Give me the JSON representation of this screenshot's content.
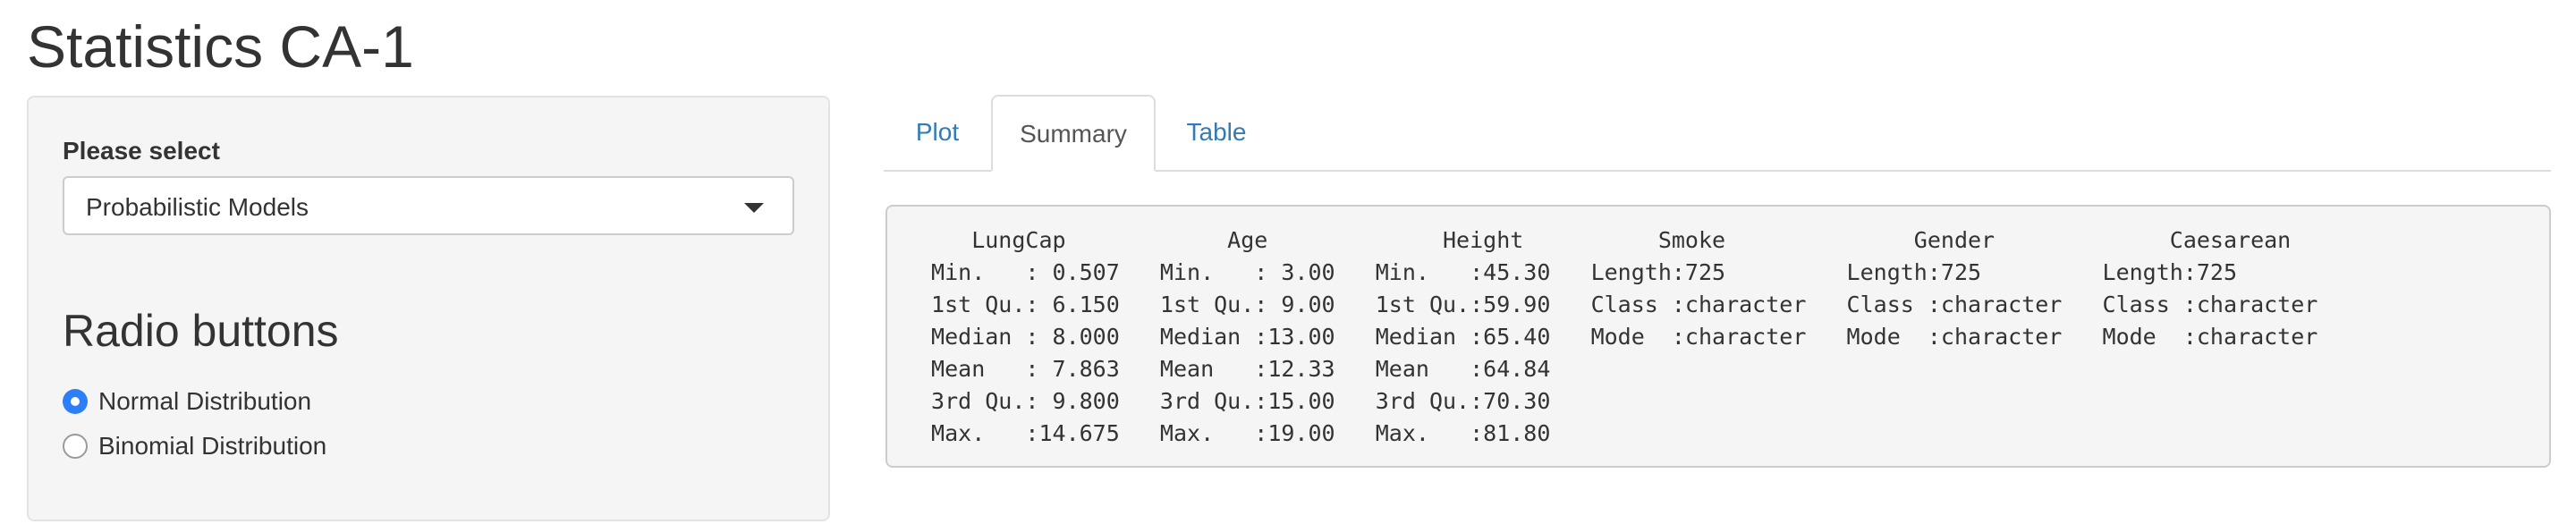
{
  "app": {
    "title": "Statistics CA-1"
  },
  "sidebar": {
    "select_label": "Please select",
    "select_value": "Probabilistic Models",
    "radio_heading": "Radio buttons",
    "radio_options": [
      {
        "label": "Normal Distribution",
        "checked": true
      },
      {
        "label": "Binomial Distribution",
        "checked": false
      }
    ]
  },
  "tabs": [
    {
      "label": "Plot",
      "active": false
    },
    {
      "label": "Summary",
      "active": true
    },
    {
      "label": "Table",
      "active": false
    }
  ],
  "summary_output": {
    "lines": [
      "    LungCap            Age             Height          Smoke              Gender             Caesarean        ",
      " Min.   : 0.507   Min.   : 3.00   Min.   :45.30   Length:725         Length:725         Length:725        ",
      " 1st Qu.: 6.150   1st Qu.: 9.00   1st Qu.:59.90   Class :character   Class :character   Class :character  ",
      " Median : 8.000   Median :13.00   Median :65.40   Mode  :character   Mode  :character   Mode  :character  ",
      " Mean   : 7.863   Mean   :12.33   Mean   :64.84                                                           ",
      " 3rd Qu.: 9.800   3rd Qu.:15.00   3rd Qu.:70.30                                                           ",
      " Max.   :14.675   Max.   :19.00   Max.   :81.80                                                           "
    ]
  },
  "colors": {
    "link": "#337ab7",
    "radio_checked": "#2d7ff9",
    "panel_bg": "#f5f5f5"
  }
}
